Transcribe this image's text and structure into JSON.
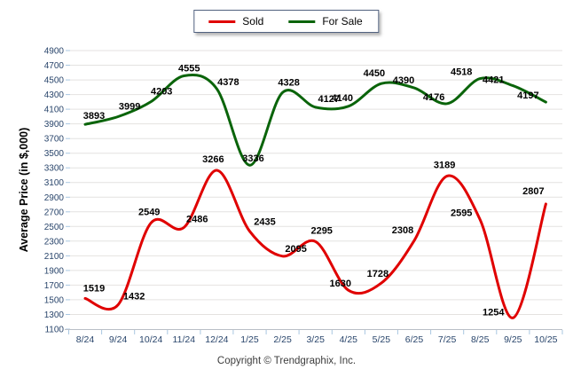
{
  "legend": {
    "items": [
      {
        "label": "Sold",
        "color": "#e00000"
      },
      {
        "label": "For Sale",
        "color": "#0a640a"
      }
    ]
  },
  "y_axis_title": "Average Price (in $,000)",
  "footer": "Copyright © Trendgraphix, Inc.",
  "chart_data": {
    "type": "line",
    "smooth": true,
    "title": "",
    "xlabel": "",
    "ylabel": "Average Price (in $,000)",
    "categories": [
      "8/24",
      "9/24",
      "10/24",
      "11/24",
      "12/24",
      "1/25",
      "2/25",
      "3/25",
      "4/25",
      "5/25",
      "6/25",
      "7/25",
      "8/25",
      "9/25",
      "10/25"
    ],
    "series": [
      {
        "name": "Sold",
        "color": "#e00000",
        "values": [
          1519,
          1432,
          2549,
          2486,
          3266,
          2435,
          2095,
          2295,
          1630,
          1728,
          2308,
          3189,
          2595,
          1254,
          2807
        ]
      },
      {
        "name": "For Sale",
        "color": "#0a640a",
        "values": [
          3893,
          3999,
          4203,
          4555,
          4378,
          3336,
          4328,
          4127,
          4140,
          4450,
          4390,
          4176,
          4518,
          4421,
          4197
        ]
      }
    ],
    "ylim": [
      1100,
      4900
    ],
    "y_tick_step": 200,
    "y_ticks": [
      4900,
      4700,
      4500,
      4300,
      4100,
      3900,
      3700,
      3500,
      3300,
      3100,
      2900,
      2700,
      2500,
      2300,
      2100,
      1900,
      1700,
      1500,
      1300,
      1100
    ],
    "grid": true,
    "legend_position": "top-center",
    "data_labels": true
  }
}
